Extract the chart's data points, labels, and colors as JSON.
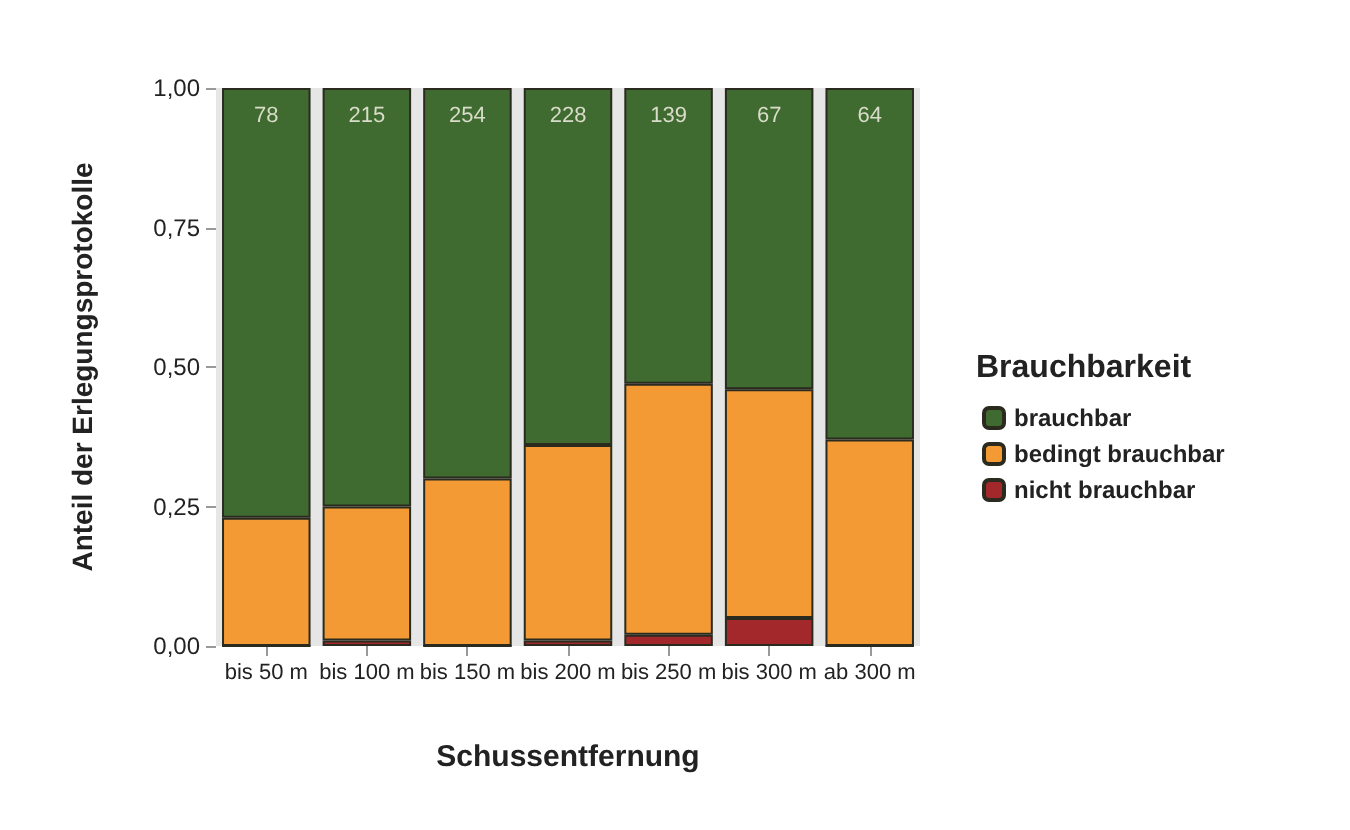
{
  "chart_data": {
    "type": "bar",
    "stacked": true,
    "xlabel": "Schussentfernung",
    "ylabel": "Anteil der Erlegungsprotokolle",
    "legend_title": "Brauchbarkeit",
    "legend": "right",
    "categories": [
      "bis 50 m",
      "bis 100 m",
      "bis 150 m",
      "bis 200 m",
      "bis 250 m",
      "bis 300 m",
      "ab 300 m"
    ],
    "series": [
      {
        "name": "nicht brauchbar",
        "color": "#a3282c",
        "values": [
          0,
          0.01,
          0,
          0.01,
          0.02,
          0.05,
          0
        ]
      },
      {
        "name": "bedingt brauchbar",
        "color": "#f39a35",
        "values": [
          0.23,
          0.24,
          0.3,
          0.35,
          0.45,
          0.41,
          0.37
        ]
      },
      {
        "name": "brauchbar",
        "color": "#3f6b30",
        "values": [
          0.77,
          0.75,
          0.7,
          0.64,
          0.53,
          0.54,
          0.63
        ]
      }
    ],
    "ylim": [
      0,
      1
    ],
    "yticks": [
      {
        "value": 0,
        "label": "0,00"
      },
      {
        "value": 0.25,
        "label": "0,25"
      },
      {
        "value": 0.5,
        "label": "0,50"
      },
      {
        "value": 0.75,
        "label": "0,75"
      },
      {
        "value": 1,
        "label": "1,00"
      }
    ],
    "grid": false,
    "annotations": [
      {
        "text": "78",
        "x": "bis 50 m",
        "y": 1
      },
      {
        "text": "215",
        "x": "bis 100 m",
        "y": 1
      },
      {
        "text": "254",
        "x": "bis 150 m",
        "y": 1
      },
      {
        "text": "228",
        "x": "bis 200 m",
        "y": 1
      },
      {
        "text": "139",
        "x": "bis 250 m",
        "y": 1
      },
      {
        "text": "67",
        "x": "bis 300 m",
        "y": 1
      },
      {
        "text": "64",
        "x": "ab 300 m",
        "y": 1
      }
    ]
  }
}
